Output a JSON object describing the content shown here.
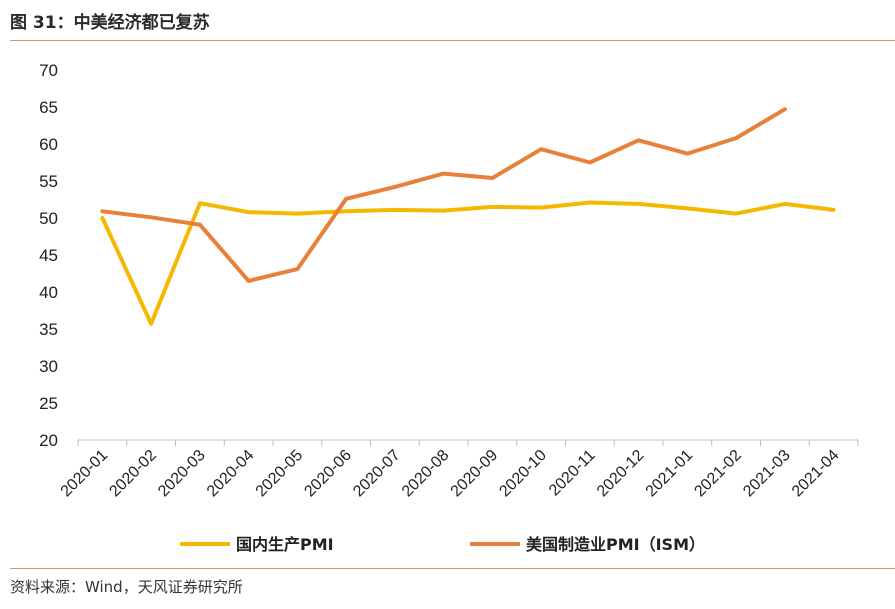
{
  "header": {
    "title": "图 31：中美经济都已复苏"
  },
  "footer": {
    "source": "资料来源：Wind，天风证券研究所"
  },
  "chart_data": {
    "type": "line",
    "categories": [
      "2020-01",
      "2020-02",
      "2020-03",
      "2020-04",
      "2020-05",
      "2020-06",
      "2020-07",
      "2020-08",
      "2020-09",
      "2020-10",
      "2020-11",
      "2020-12",
      "2021-01",
      "2021-02",
      "2021-03",
      "2021-04"
    ],
    "ylim": [
      20,
      70
    ],
    "yticks": [
      20,
      25,
      30,
      35,
      40,
      45,
      50,
      55,
      60,
      65,
      70
    ],
    "grid": false,
    "legend_position": "bottom",
    "series": [
      {
        "name": "国内生产PMI",
        "color": "#f5b800",
        "values": [
          50.0,
          35.7,
          52.0,
          50.8,
          50.6,
          50.9,
          51.1,
          51.0,
          51.5,
          51.4,
          52.1,
          51.9,
          51.3,
          50.6,
          51.9,
          51.1
        ]
      },
      {
        "name": "美国制造业PMI（ISM）",
        "color": "#e8803a",
        "values": [
          50.9,
          50.1,
          49.1,
          41.5,
          43.1,
          52.6,
          54.2,
          56.0,
          55.4,
          59.3,
          57.5,
          60.5,
          58.7,
          60.8,
          64.7,
          null
        ]
      }
    ]
  }
}
